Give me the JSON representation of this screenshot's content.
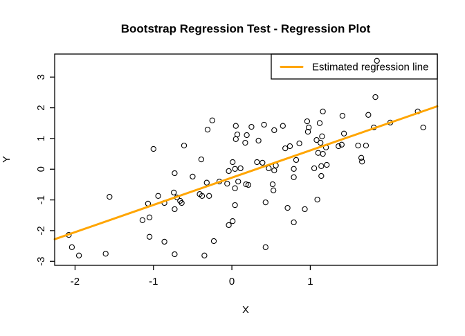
{
  "figure": {
    "title": "Bootstrap Regression Test - Regression Plot",
    "xlabel": "X",
    "ylabel": "Y"
  },
  "legend": {
    "label": "Estimated regression line",
    "line_color": "#FFA500",
    "position": "topright"
  },
  "chart_data": {
    "type": "scatter",
    "title": "Bootstrap Regression Test - Regression Plot",
    "xlabel": "X",
    "ylabel": "Y",
    "xlim": [
      -2.26,
      2.62
    ],
    "ylim": [
      -3.13,
      3.75
    ],
    "x_ticks": [
      -2,
      -1,
      0,
      1
    ],
    "y_ticks": [
      -3,
      -2,
      -1,
      0,
      1,
      2,
      3
    ],
    "x_tick_labels": [
      "-2",
      "-1",
      "0",
      "1"
    ],
    "y_tick_labels": [
      "-3",
      "-2",
      "-1",
      "0",
      "1",
      "2",
      "3"
    ],
    "grid": false,
    "point_style": "open-circle",
    "point_color": "#000000",
    "line_color": "#FFA500",
    "legend_position": "topright",
    "legend_label": "Estimated regression line",
    "regression_line": {
      "x1": -2.26,
      "y1": -2.28,
      "x2": 2.62,
      "y2": 2.05
    },
    "points": [
      [
        -0.25,
        1.59
      ],
      [
        -0.31,
        1.29
      ],
      [
        0.05,
        1.41
      ],
      [
        0.07,
        1.13
      ],
      [
        0.05,
        0.98
      ],
      [
        -1.0,
        0.66
      ],
      [
        -0.61,
        0.77
      ],
      [
        1.85,
        3.53
      ],
      [
        1.83,
        2.35
      ],
      [
        1.16,
        1.88
      ],
      [
        2.37,
        1.88
      ],
      [
        1.41,
        1.74
      ],
      [
        1.74,
        1.77
      ],
      [
        0.96,
        1.56
      ],
      [
        0.98,
        1.36
      ],
      [
        0.97,
        1.22
      ],
      [
        0.25,
        1.38
      ],
      [
        0.41,
        1.45
      ],
      [
        0.54,
        1.27
      ],
      [
        0.65,
        1.41
      ],
      [
        1.12,
        1.5
      ],
      [
        2.02,
        1.52
      ],
      [
        2.44,
        1.36
      ],
      [
        1.81,
        1.36
      ],
      [
        0.19,
        1.11
      ],
      [
        0.17,
        0.86
      ],
      [
        0.34,
        0.93
      ],
      [
        1.15,
        1.07
      ],
      [
        1.08,
        0.95
      ],
      [
        1.13,
        0.86
      ],
      [
        1.43,
        1.16
      ],
      [
        1.2,
        0.71
      ],
      [
        1.36,
        0.75
      ],
      [
        1.4,
        0.8
      ],
      [
        1.61,
        0.77
      ],
      [
        1.71,
        0.77
      ],
      [
        0.68,
        0.68
      ],
      [
        0.74,
        0.75
      ],
      [
        0.86,
        0.84
      ],
      [
        1.1,
        0.53
      ],
      [
        1.16,
        0.5
      ],
      [
        1.65,
        0.37
      ],
      [
        1.66,
        0.25
      ],
      [
        -0.39,
        0.32
      ],
      [
        0.82,
        0.3
      ],
      [
        0.01,
        0.23
      ],
      [
        -0.04,
        -0.06
      ],
      [
        0.04,
        0.01
      ],
      [
        0.11,
        0.03
      ],
      [
        -0.73,
        -0.13
      ],
      [
        -0.5,
        -0.24
      ],
      [
        -0.32,
        -0.44
      ],
      [
        -0.16,
        -0.4
      ],
      [
        -0.06,
        -0.47
      ],
      [
        0.08,
        -0.4
      ],
      [
        0.18,
        -0.49
      ],
      [
        0.04,
        -0.62
      ],
      [
        -1.56,
        -0.9
      ],
      [
        -0.94,
        -0.87
      ],
      [
        -0.74,
        -0.76
      ],
      [
        -0.7,
        -0.92
      ],
      [
        -0.66,
        -1.03
      ],
      [
        -0.64,
        -1.1
      ],
      [
        -1.07,
        -1.12
      ],
      [
        -0.86,
        -1.1
      ],
      [
        -0.73,
        -1.3
      ],
      [
        -0.41,
        -0.81
      ],
      [
        -0.38,
        -0.87
      ],
      [
        -0.29,
        -0.87
      ],
      [
        0.04,
        -1.17
      ],
      [
        -1.14,
        -1.66
      ],
      [
        -1.05,
        -1.57
      ],
      [
        0.01,
        -1.69
      ],
      [
        -0.04,
        -1.82
      ],
      [
        -2.08,
        -2.14
      ],
      [
        -1.05,
        -2.2
      ],
      [
        -0.86,
        -2.36
      ],
      [
        -0.23,
        -2.34
      ],
      [
        -2.04,
        -2.54
      ],
      [
        -1.95,
        -2.81
      ],
      [
        -1.61,
        -2.75
      ],
      [
        -0.73,
        -2.77
      ],
      [
        -0.35,
        -2.81
      ],
      [
        0.32,
        0.23
      ],
      [
        0.39,
        0.21
      ],
      [
        0.47,
        0.03
      ],
      [
        0.56,
        0.12
      ],
      [
        0.54,
        -0.04
      ],
      [
        0.79,
        0.01
      ],
      [
        0.79,
        -0.26
      ],
      [
        1.05,
        0.03
      ],
      [
        1.14,
        0.1
      ],
      [
        1.21,
        0.14
      ],
      [
        1.14,
        -0.22
      ],
      [
        0.21,
        -0.51
      ],
      [
        0.52,
        -0.49
      ],
      [
        0.53,
        -0.69
      ],
      [
        0.43,
        -1.08
      ],
      [
        0.71,
        -1.26
      ],
      [
        0.93,
        -1.3
      ],
      [
        1.09,
        -0.99
      ],
      [
        0.79,
        -1.73
      ],
      [
        0.43,
        -2.54
      ]
    ]
  }
}
